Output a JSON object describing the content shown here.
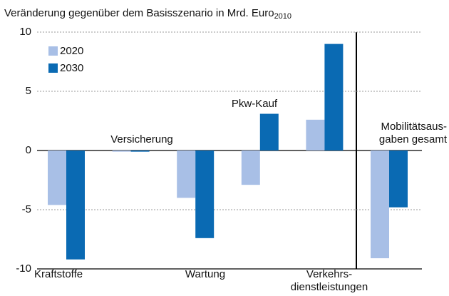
{
  "chart_data": {
    "type": "bar",
    "title": "Veränderung gegenüber dem Basisszenario in Mrd. Euro",
    "title_subscript": "2010",
    "categories": [
      [
        "Kraftstoffe"
      ],
      [
        "Versicherung"
      ],
      [
        "Wartung"
      ],
      [
        "Pkw-Kauf"
      ],
      [
        "Verkehrs-",
        "dienstleistungen"
      ],
      [
        "Mobilitätsaus-",
        "gaben gesamt"
      ]
    ],
    "series": [
      {
        "name": "2020",
        "color": "#a8bfe6",
        "values": [
          -4.6,
          -0.1,
          -4.0,
          -2.9,
          2.6,
          -9.1
        ]
      },
      {
        "name": "2030",
        "color": "#0a6ab3",
        "values": [
          -9.2,
          -0.1,
          -7.4,
          3.1,
          9.0,
          -4.8
        ]
      }
    ],
    "ylim": [
      -10,
      10
    ],
    "yticks": [
      10,
      5,
      0,
      -5,
      -10
    ],
    "grid": true,
    "legend": "upper left"
  }
}
